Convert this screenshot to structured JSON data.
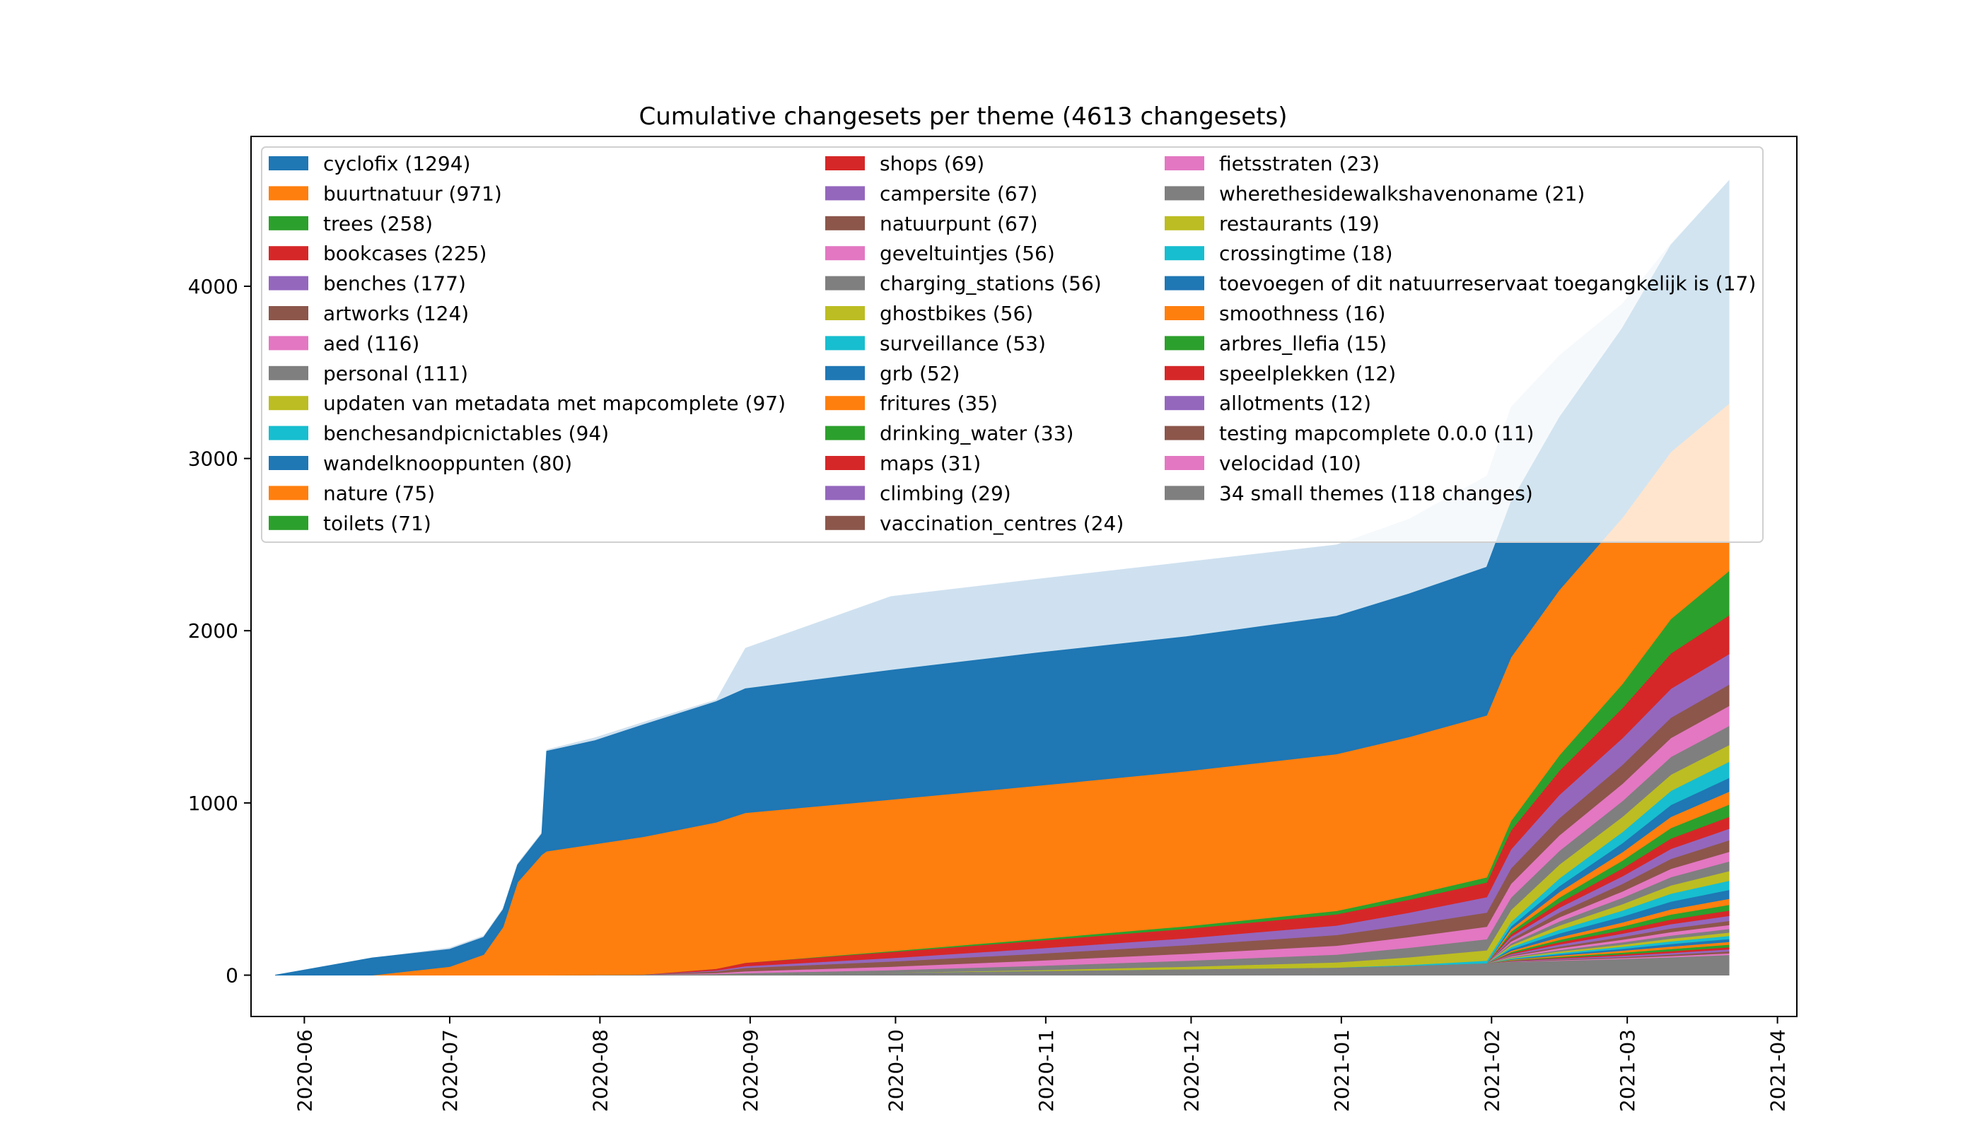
{
  "chart_data": {
    "type": "area",
    "stacked": true,
    "title": "Cumulative changesets per theme (4613 changesets)",
    "xlabel": "",
    "ylabel": "",
    "x_range": [
      "2020-05-21",
      "2021-04-05"
    ],
    "ylim": [
      -240,
      4870
    ],
    "yticks": [
      0,
      1000,
      2000,
      3000,
      4000
    ],
    "xticks": [
      "2020-06",
      "2020-07",
      "2020-08",
      "2020-09",
      "2020-10",
      "2020-11",
      "2020-12",
      "2021-01",
      "2021-02",
      "2021-03",
      "2021-04"
    ],
    "grid": false,
    "legend_position": "upper-left, inside plot, 3 columns",
    "x": [
      "2020-05-26",
      "2020-06-01",
      "2020-06-15",
      "2020-07-01",
      "2020-07-08",
      "2020-07-12",
      "2020-07-15",
      "2020-07-20",
      "2020-07-21",
      "2020-07-31",
      "2020-08-10",
      "2020-08-25",
      "2020-08-31",
      "2020-09-30",
      "2020-10-30",
      "2020-11-30",
      "2020-12-31",
      "2021-01-15",
      "2021-01-31",
      "2021-02-05",
      "2021-02-15",
      "2021-02-28",
      "2021-03-10",
      "2021-03-22"
    ],
    "series": [
      {
        "name": "34 small themes (118 changes)",
        "color": "#7f7f7f",
        "values": [
          0,
          0,
          0,
          0,
          0,
          0,
          0,
          0,
          0,
          2,
          4,
          6,
          8,
          15,
          25,
          35,
          45,
          55,
          70,
          78,
          85,
          95,
          105,
          118
        ]
      },
      {
        "name": "velocidad (10)",
        "color": "#e377c2",
        "values": [
          0,
          0,
          0,
          0,
          0,
          0,
          0,
          0,
          0,
          0,
          0,
          0,
          0,
          0,
          0,
          0,
          0,
          0,
          0,
          1,
          3,
          5,
          7,
          10
        ]
      },
      {
        "name": "testing mapcomplete 0.0.0 (11)",
        "color": "#8c564b",
        "values": [
          0,
          0,
          0,
          0,
          0,
          0,
          0,
          0,
          0,
          0,
          0,
          0,
          0,
          0,
          0,
          0,
          0,
          0,
          0,
          2,
          4,
          6,
          8,
          11
        ]
      },
      {
        "name": "allotments (12)",
        "color": "#9467bd",
        "values": [
          0,
          0,
          0,
          0,
          0,
          0,
          0,
          0,
          0,
          0,
          0,
          0,
          0,
          0,
          0,
          0,
          0,
          0,
          0,
          2,
          5,
          8,
          10,
          12
        ]
      },
      {
        "name": "speelplekken (12)",
        "color": "#d62728",
        "values": [
          0,
          0,
          0,
          0,
          0,
          0,
          0,
          0,
          0,
          0,
          0,
          0,
          0,
          0,
          0,
          0,
          0,
          0,
          0,
          2,
          5,
          8,
          10,
          12
        ]
      },
      {
        "name": "arbres_llefia (15)",
        "color": "#2ca02c",
        "values": [
          0,
          0,
          0,
          0,
          0,
          0,
          0,
          0,
          0,
          0,
          0,
          0,
          0,
          0,
          0,
          0,
          0,
          0,
          0,
          3,
          6,
          10,
          13,
          15
        ]
      },
      {
        "name": "smoothness (16)",
        "color": "#ff7f0e",
        "values": [
          0,
          0,
          0,
          0,
          0,
          0,
          0,
          0,
          0,
          0,
          0,
          0,
          0,
          0,
          0,
          0,
          0,
          0,
          0,
          3,
          7,
          11,
          14,
          16
        ]
      },
      {
        "name": "toevoegen of dit natuurreservaat toegangkelijk is (17)",
        "color": "#1f77b4",
        "values": [
          0,
          0,
          0,
          0,
          0,
          0,
          0,
          0,
          0,
          0,
          0,
          0,
          0,
          0,
          0,
          0,
          0,
          0,
          0,
          3,
          7,
          11,
          15,
          17
        ]
      },
      {
        "name": "crossingtime (18)",
        "color": "#17becf",
        "values": [
          0,
          0,
          0,
          0,
          0,
          0,
          0,
          0,
          0,
          0,
          0,
          0,
          0,
          0,
          0,
          0,
          0,
          0,
          0,
          4,
          8,
          12,
          15,
          18
        ]
      },
      {
        "name": "restaurants (19)",
        "color": "#bcbd22",
        "values": [
          0,
          0,
          0,
          0,
          0,
          0,
          0,
          0,
          0,
          0,
          0,
          0,
          0,
          0,
          0,
          0,
          0,
          0,
          0,
          4,
          8,
          12,
          16,
          19
        ]
      },
      {
        "name": "wherethesidewalkshavenoname (21)",
        "color": "#7f7f7f",
        "values": [
          0,
          0,
          0,
          0,
          0,
          0,
          0,
          0,
          0,
          0,
          0,
          0,
          0,
          0,
          0,
          0,
          0,
          0,
          0,
          4,
          9,
          14,
          18,
          21
        ]
      },
      {
        "name": "fietsstraten (23)",
        "color": "#e377c2",
        "values": [
          0,
          0,
          0,
          0,
          0,
          0,
          0,
          0,
          0,
          0,
          0,
          0,
          0,
          0,
          0,
          0,
          0,
          0,
          0,
          5,
          10,
          15,
          20,
          23
        ]
      },
      {
        "name": "vaccination_centres (24)",
        "color": "#8c564b",
        "values": [
          0,
          0,
          0,
          0,
          0,
          0,
          0,
          0,
          0,
          0,
          0,
          0,
          0,
          0,
          0,
          0,
          0,
          0,
          0,
          5,
          10,
          16,
          21,
          24
        ]
      },
      {
        "name": "climbing (29)",
        "color": "#9467bd",
        "values": [
          0,
          0,
          0,
          0,
          0,
          0,
          0,
          0,
          0,
          0,
          0,
          0,
          0,
          0,
          0,
          0,
          0,
          0,
          0,
          6,
          12,
          19,
          25,
          29
        ]
      },
      {
        "name": "maps (31)",
        "color": "#d62728",
        "values": [
          0,
          0,
          0,
          0,
          0,
          0,
          0,
          0,
          0,
          0,
          0,
          0,
          0,
          0,
          0,
          0,
          0,
          0,
          0,
          6,
          13,
          20,
          27,
          31
        ]
      },
      {
        "name": "drinking_water (33)",
        "color": "#2ca02c",
        "values": [
          0,
          0,
          0,
          0,
          0,
          0,
          0,
          0,
          0,
          0,
          0,
          0,
          0,
          0,
          0,
          0,
          0,
          0,
          0,
          7,
          14,
          22,
          29,
          33
        ]
      },
      {
        "name": "fritures (35)",
        "color": "#ff7f0e",
        "values": [
          0,
          0,
          0,
          0,
          0,
          0,
          0,
          0,
          0,
          0,
          0,
          0,
          0,
          0,
          0,
          0,
          0,
          0,
          0,
          7,
          15,
          23,
          30,
          35
        ]
      },
      {
        "name": "grb (52)",
        "color": "#1f77b4",
        "values": [
          0,
          0,
          0,
          0,
          0,
          0,
          0,
          0,
          0,
          0,
          0,
          0,
          0,
          0,
          0,
          0,
          0,
          0,
          0,
          10,
          22,
          34,
          45,
          52
        ]
      },
      {
        "name": "surveillance (53)",
        "color": "#17becf",
        "values": [
          0,
          0,
          0,
          0,
          0,
          0,
          0,
          0,
          0,
          0,
          0,
          0,
          0,
          0,
          0,
          0,
          0,
          0,
          0,
          11,
          22,
          35,
          46,
          53
        ]
      },
      {
        "name": "ghostbikes (56)",
        "color": "#bcbd22",
        "values": [
          0,
          0,
          0,
          0,
          0,
          0,
          0,
          0,
          0,
          0,
          0,
          0,
          0,
          0,
          0,
          0,
          0,
          0,
          0,
          11,
          24,
          37,
          48,
          56
        ]
      },
      {
        "name": "charging_stations (56)",
        "color": "#7f7f7f",
        "values": [
          0,
          0,
          0,
          0,
          0,
          0,
          0,
          0,
          0,
          0,
          0,
          0,
          0,
          0,
          0,
          0,
          0,
          0,
          0,
          11,
          24,
          37,
          48,
          56
        ]
      },
      {
        "name": "geveltuintjes (56)",
        "color": "#e377c2",
        "values": [
          0,
          0,
          0,
          0,
          0,
          0,
          0,
          0,
          0,
          0,
          0,
          0,
          0,
          0,
          0,
          0,
          0,
          0,
          0,
          11,
          24,
          37,
          48,
          56
        ]
      },
      {
        "name": "natuurpunt (67)",
        "color": "#8c564b",
        "values": [
          0,
          0,
          0,
          0,
          0,
          0,
          0,
          0,
          0,
          0,
          0,
          0,
          0,
          0,
          0,
          0,
          0,
          0,
          0,
          14,
          28,
          44,
          58,
          67
        ]
      },
      {
        "name": "campersite (67)",
        "color": "#9467bd",
        "values": [
          0,
          0,
          0,
          0,
          0,
          0,
          0,
          0,
          0,
          0,
          0,
          0,
          0,
          0,
          0,
          0,
          0,
          0,
          0,
          14,
          28,
          44,
          58,
          67
        ]
      },
      {
        "name": "shops (69)",
        "color": "#d62728",
        "values": [
          0,
          0,
          0,
          0,
          0,
          0,
          0,
          0,
          0,
          0,
          0,
          0,
          0,
          0,
          0,
          0,
          0,
          0,
          0,
          14,
          29,
          45,
          60,
          69
        ]
      },
      {
        "name": "toilets (71)",
        "color": "#2ca02c",
        "values": [
          0,
          0,
          0,
          0,
          0,
          0,
          0,
          0,
          0,
          0,
          0,
          0,
          0,
          0,
          0,
          0,
          0,
          0,
          0,
          15,
          30,
          46,
          61,
          71
        ]
      },
      {
        "name": "nature (75)",
        "color": "#ff7f0e",
        "values": [
          0,
          0,
          0,
          0,
          0,
          0,
          0,
          0,
          0,
          0,
          0,
          0,
          0,
          0,
          0,
          0,
          0,
          0,
          0,
          15,
          32,
          49,
          65,
          75
        ]
      },
      {
        "name": "wandelknooppunten (80)",
        "color": "#1f77b4",
        "values": [
          0,
          0,
          0,
          0,
          0,
          0,
          0,
          0,
          0,
          0,
          0,
          0,
          0,
          0,
          0,
          0,
          0,
          0,
          0,
          16,
          34,
          52,
          69,
          80
        ]
      },
      {
        "name": "benchesandpicnictables (94)",
        "color": "#17becf",
        "values": [
          0,
          0,
          0,
          0,
          0,
          0,
          0,
          0,
          0,
          0,
          0,
          0,
          0,
          0,
          0,
          0,
          0,
          5,
          15,
          25,
          45,
          65,
          82,
          94
        ]
      },
      {
        "name": "updaten van metadata met mapcomplete (97)",
        "color": "#bcbd22",
        "values": [
          0,
          0,
          0,
          0,
          0,
          0,
          0,
          0,
          0,
          0,
          0,
          0,
          0,
          0,
          5,
          15,
          30,
          45,
          60,
          70,
          80,
          88,
          94,
          97
        ]
      },
      {
        "name": "personal (111)",
        "color": "#7f7f7f",
        "values": [
          0,
          0,
          0,
          0,
          0,
          0,
          0,
          0,
          0,
          0,
          0,
          2,
          5,
          15,
          25,
          35,
          45,
          55,
          65,
          72,
          80,
          92,
          103,
          111
        ]
      },
      {
        "name": "aed (116)",
        "color": "#e377c2",
        "values": [
          0,
          0,
          0,
          0,
          0,
          0,
          0,
          0,
          0,
          0,
          0,
          5,
          10,
          20,
          30,
          40,
          52,
          62,
          72,
          80,
          90,
          100,
          110,
          116
        ]
      },
      {
        "name": "artworks (124)",
        "color": "#8c564b",
        "values": [
          0,
          0,
          0,
          0,
          0,
          0,
          0,
          0,
          0,
          0,
          0,
          10,
          20,
          30,
          40,
          50,
          62,
          72,
          82,
          90,
          100,
          110,
          118,
          124
        ]
      },
      {
        "name": "benches (177)",
        "color": "#9467bd",
        "values": [
          0,
          0,
          0,
          0,
          0,
          0,
          0,
          0,
          0,
          0,
          0,
          5,
          10,
          20,
          30,
          40,
          55,
          70,
          90,
          110,
          135,
          155,
          168,
          177
        ]
      },
      {
        "name": "bookcases (225)",
        "color": "#d62728",
        "values": [
          0,
          0,
          0,
          0,
          0,
          0,
          0,
          0,
          0,
          0,
          0,
          10,
          20,
          35,
          45,
          55,
          65,
          75,
          85,
          110,
          140,
          175,
          205,
          225
        ]
      },
      {
        "name": "trees (258)",
        "color": "#2ca02c",
        "values": [
          0,
          0,
          0,
          0,
          0,
          0,
          0,
          0,
          0,
          0,
          0,
          0,
          0,
          5,
          10,
          15,
          20,
          25,
          30,
          55,
          90,
          140,
          200,
          258
        ]
      },
      {
        "name": "buurtnatuur (971)",
        "color": "#ff7f0e",
        "values": [
          0,
          0,
          0,
          50,
          120,
          280,
          540,
          700,
          720,
          760,
          800,
          850,
          870,
          880,
          890,
          900,
          910,
          920,
          940,
          950,
          960,
          965,
          970,
          971
        ]
      },
      {
        "name": "cyclofix (1294)",
        "color": "#1f77b4",
        "values": [
          0,
          30,
          100,
          100,
          100,
          100,
          100,
          120,
          580,
          600,
          650,
          700,
          720,
          750,
          770,
          780,
          800,
          830,
          860,
          900,
          1000,
          1100,
          1200,
          1294
        ]
      }
    ],
    "background_series": [
      {
        "name": "",
        "color": "#fde0c5",
        "values": [
          0,
          30,
          100,
          160,
          230,
          390,
          650,
          830,
          1310,
          1380,
          1470,
          1600,
          1680,
          1790,
          1860,
          1935,
          2017,
          2110,
          2248,
          2480,
          2620,
          2790,
          3000,
          3300
        ]
      },
      {
        "name": "",
        "color": "#cfe1f0",
        "values": [
          0,
          30,
          100,
          160,
          230,
          390,
          650,
          830,
          1310,
          1380,
          1470,
          1600,
          1900,
          2200,
          2300,
          2400,
          2500,
          2650,
          2900,
          3300,
          3600,
          3900,
          4250,
          4613
        ]
      }
    ]
  }
}
